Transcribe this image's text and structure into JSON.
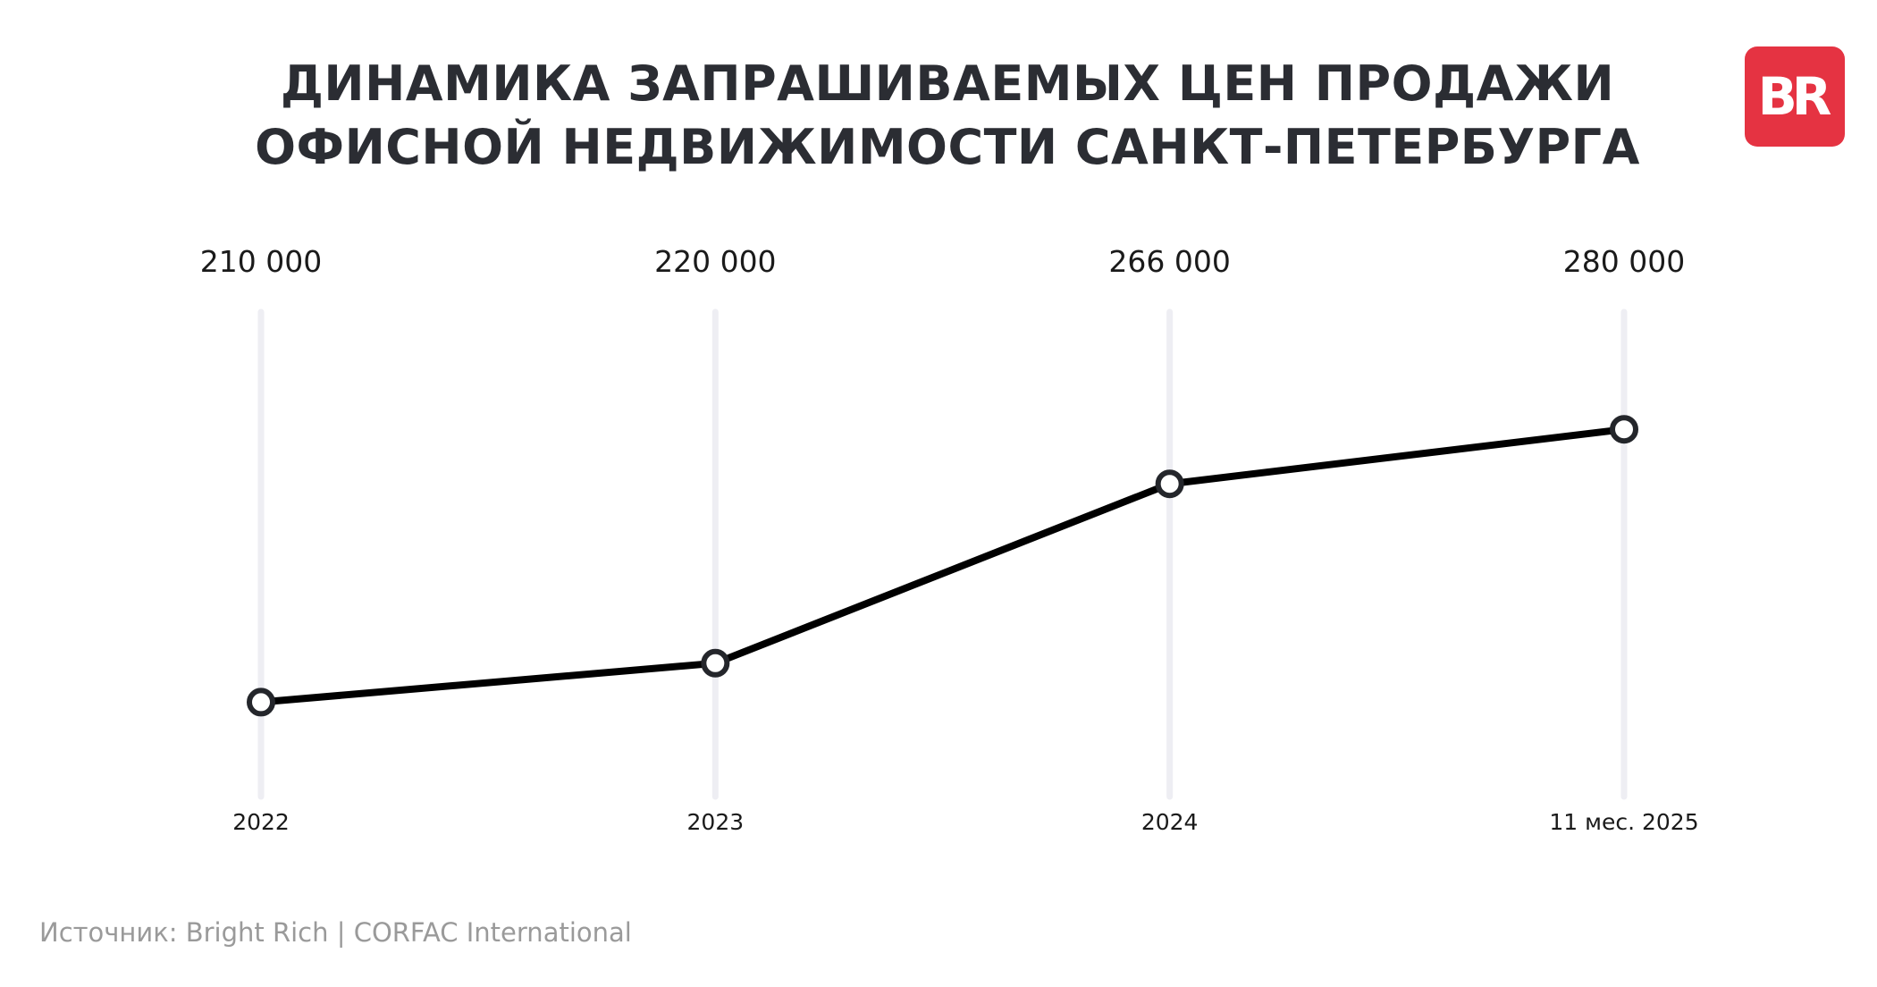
{
  "title_line1": "ДИНАМИКА ЗАПРАШИВАЕМЫХ ЦЕН ПРОДАЖИ",
  "title_line2": "ОФИСНОЙ НЕДВИЖИМОСТИ САНКТ-ПЕТЕРБУРГА",
  "logo_text": "BR",
  "source": "Источник: Bright Rich | CORFAC International",
  "colors": {
    "line": "#000000",
    "marker_stroke": "#24262b",
    "grid": "#eeeef3",
    "logo_bg": "#e53342",
    "title": "#2b2d33",
    "source": "#9a9a9a"
  },
  "chart_data": {
    "type": "line",
    "categories": [
      "2022",
      "2023",
      "2024",
      "11 мес. 2025"
    ],
    "values": [
      210000,
      220000,
      266000,
      280000
    ],
    "value_labels": [
      "210 000",
      "220 000",
      "266 000",
      "280 000"
    ],
    "grid": "vertical",
    "legend": "none"
  }
}
